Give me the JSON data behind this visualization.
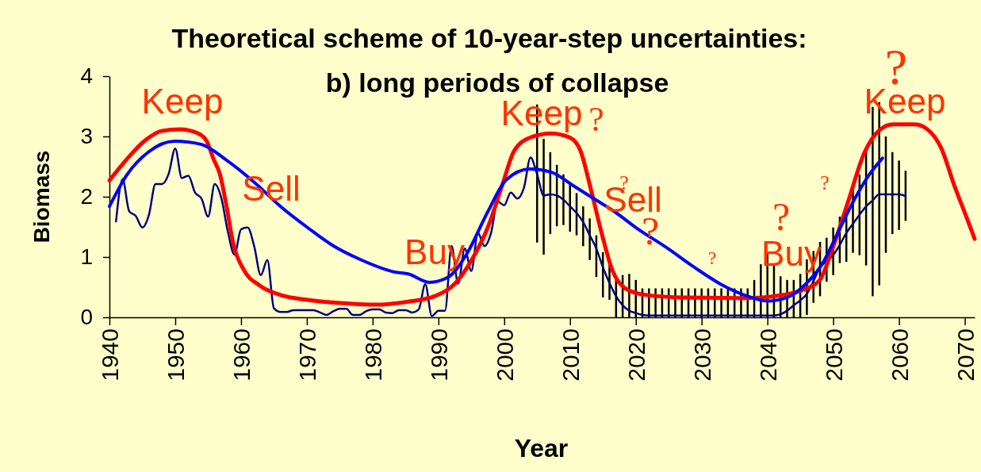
{
  "chart_data": {
    "type": "line",
    "title": "Theoretical scheme of 10-year-step uncertainties:\nb) long periods of collapse",
    "xlabel": "Year",
    "ylabel": "Biomass",
    "xlim": [
      1940,
      2071.5
    ],
    "xticks": [
      1940,
      1950,
      1960,
      1970,
      1980,
      1990,
      2000,
      2010,
      2020,
      2030,
      2040,
      2050,
      2060,
      2070
    ],
    "ylim": [
      0,
      4
    ],
    "yticks": [
      0,
      1,
      2,
      3,
      4
    ],
    "grid": false,
    "marker": "none",
    "line_style": "solid",
    "series": [
      {
        "color": "#000080",
        "x": [
          1941,
          1942,
          1943,
          1944,
          1945,
          1946,
          1947,
          1948,
          1949,
          1950,
          1951,
          1952,
          1953,
          1954,
          1955,
          1956,
          1957,
          1958,
          1959,
          1960,
          1961,
          1962,
          1963,
          1964,
          1965,
          1966,
          1967,
          1968,
          1969,
          1970,
          1971,
          1972,
          1973,
          1974,
          1975,
          1976,
          1977,
          1978,
          1979,
          1980,
          1981,
          1982,
          1983,
          1984,
          1985,
          1986,
          1987,
          1988,
          1989,
          1990,
          1991,
          1992,
          1993,
          1994,
          1995,
          1996,
          1997,
          1998,
          1999,
          2000,
          2001,
          2002,
          2003,
          2004,
          2005,
          2006,
          2007,
          2008,
          2009,
          2010,
          2011,
          2012,
          2013,
          2014,
          2015,
          2016,
          2017,
          2018,
          2019,
          2020,
          2021,
          2022,
          2023,
          2024,
          2025,
          2026,
          2027,
          2028,
          2029,
          2030,
          2031,
          2032,
          2033,
          2034,
          2035,
          2036,
          2037,
          2038,
          2039,
          2040,
          2041,
          2042,
          2043,
          2044,
          2045,
          2046,
          2047,
          2048,
          2049,
          2050,
          2051,
          2052,
          2053,
          2054,
          2055,
          2056,
          2057,
          2058,
          2059,
          2060,
          2061
        ],
        "values": [
          1.59,
          2.29,
          1.76,
          1.68,
          1.49,
          1.7,
          2.21,
          2.21,
          2.38,
          2.8,
          2.31,
          2.35,
          2.07,
          1.97,
          1.67,
          2.21,
          1.98,
          1.42,
          1.04,
          1.46,
          1.49,
          1.18,
          0.7,
          0.95,
          0.15,
          0.09,
          0.09,
          0.12,
          0.12,
          0.12,
          0.12,
          0.08,
          0.04,
          0.1,
          0.14,
          0.14,
          0.04,
          0.04,
          0.1,
          0.13,
          0.13,
          0.08,
          0.07,
          0.12,
          0.12,
          0.08,
          0.13,
          0.55,
          0.02,
          0.11,
          0.11,
          1.18,
          0.56,
          1.14,
          0.77,
          1.4,
          1.18,
          1.4,
          1.92,
          1.86,
          2.07,
          1.97,
          2.15,
          2.65,
          2.37,
          2.02,
          2.04,
          2.02,
          1.95,
          1.84,
          1.73,
          1.58,
          1.36,
          1.14,
          0.83,
          0.57,
          0.35,
          0.2,
          0.11,
          0.07,
          0.04,
          0.03,
          0.03,
          0.03,
          0.03,
          0.03,
          0.03,
          0.03,
          0.03,
          0.03,
          0.03,
          0.03,
          0.03,
          0.03,
          0.03,
          0.03,
          0.03,
          0.03,
          0.03,
          0.03,
          0.03,
          0.05,
          0.11,
          0.2,
          0.28,
          0.39,
          0.6,
          0.83,
          0.93,
          1.03,
          1.2,
          1.4,
          1.55,
          1.7,
          1.84,
          1.94,
          2.04,
          2.04,
          2.04,
          2.04,
          2.01
        ],
        "errors": [
          null,
          null,
          null,
          null,
          null,
          null,
          null,
          null,
          null,
          null,
          null,
          null,
          null,
          null,
          null,
          null,
          null,
          null,
          null,
          null,
          null,
          null,
          null,
          null,
          null,
          null,
          null,
          null,
          null,
          null,
          null,
          null,
          null,
          null,
          null,
          null,
          null,
          null,
          null,
          null,
          null,
          null,
          null,
          null,
          null,
          null,
          null,
          null,
          null,
          null,
          null,
          null,
          null,
          null,
          null,
          null,
          null,
          null,
          null,
          null,
          null,
          null,
          null,
          null,
          [
            1.24,
            3.53
          ],
          [
            1.04,
            2.96
          ],
          [
            1.38,
            2.74
          ],
          [
            1.51,
            2.53
          ],
          [
            1.53,
            2.37
          ],
          [
            1.42,
            2.21
          ],
          [
            1.36,
            2.06
          ],
          [
            1.18,
            1.84
          ],
          [
            0.95,
            1.64
          ],
          [
            0.67,
            1.36
          ],
          [
            0.33,
            1.08
          ],
          [
            0.29,
            0.88
          ],
          [
            0,
            0.68
          ],
          [
            0,
            0.7
          ],
          [
            0,
            0.72
          ],
          [
            0,
            0.62
          ],
          [
            0,
            0.48
          ],
          [
            0,
            0.48
          ],
          [
            0,
            0.48
          ],
          [
            0,
            0.48
          ],
          [
            0,
            0.48
          ],
          [
            0,
            0.48
          ],
          [
            0,
            0.48
          ],
          [
            0,
            0.48
          ],
          [
            0,
            0.48
          ],
          [
            0,
            0.48
          ],
          [
            0,
            0.48
          ],
          [
            0,
            0.48
          ],
          [
            0,
            0.48
          ],
          [
            0,
            0.48
          ],
          [
            0,
            0.48
          ],
          [
            0,
            0.48
          ],
          [
            0,
            0.48
          ],
          [
            0,
            0.62
          ],
          [
            0,
            0.88
          ],
          [
            0,
            1.05
          ],
          [
            0,
            0.86
          ],
          [
            0,
            0.68
          ],
          [
            0,
            0.62
          ],
          [
            0,
            0.62
          ],
          [
            0,
            0.72
          ],
          [
            0.04,
            0.96
          ],
          [
            0.24,
            1.1
          ],
          [
            0.35,
            1.25
          ],
          [
            0.59,
            1.32
          ],
          [
            0.7,
            1.49
          ],
          [
            0.9,
            1.67
          ],
          [
            0.92,
            1.89
          ],
          [
            1.07,
            2.15
          ],
          [
            1.03,
            2.37
          ],
          [
            0.86,
            2.81
          ],
          [
            0.35,
            3.49
          ],
          [
            0.53,
            3.57
          ],
          [
            1.07,
            3.0
          ],
          [
            1.38,
            2.74
          ],
          [
            1.45,
            2.6
          ],
          [
            1.6,
            2.43
          ]
        ]
      },
      {
        "color": "#ff0000",
        "x": [
          1940,
          1942.7,
          1945.5,
          1947.9,
          1950.7,
          1953.5,
          1954.8,
          1955.8,
          1956.8,
          1957.8,
          1958.8,
          1960.4,
          1962.8,
          1966,
          1970.1,
          1976.1,
          1980.5,
          1985.4,
          1989.4,
          1992.6,
          1995.1,
          1997.5,
          1999.7,
          2001.5,
          2003.9,
          2007.1,
          2010,
          2011.6,
          2013.2,
          2014.8,
          2016.4,
          2018.4,
          2021.6,
          2027.3,
          2037,
          2041,
          2045,
          2047.9,
          2049.9,
          2052.3,
          2054.7,
          2057.1,
          2059.1,
          2062.4,
          2064.4,
          2066.4,
          2068.4,
          2070.4,
          2071.5
        ],
        "values": [
          2.27,
          2.63,
          2.94,
          3.09,
          3.12,
          3.05,
          2.92,
          2.63,
          2.37,
          1.84,
          1.23,
          0.79,
          0.53,
          0.37,
          0.29,
          0.23,
          0.21,
          0.26,
          0.35,
          0.57,
          0.96,
          1.49,
          2.19,
          2.76,
          2.98,
          3.05,
          2.98,
          2.76,
          2.11,
          1.4,
          0.79,
          0.48,
          0.37,
          0.33,
          0.32,
          0.35,
          0.44,
          0.61,
          1.14,
          1.93,
          2.72,
          3.11,
          3.2,
          3.2,
          3.11,
          2.81,
          2.19,
          1.62,
          1.3
        ]
      },
      {
        "color": "#0000ff",
        "x": [
          1940,
          1942.7,
          1945.9,
          1949.9,
          1953.9,
          1958,
          1962,
          1966,
          1970.1,
          1974.1,
          1978.1,
          1983.4,
          1985.4,
          1988.6,
          1991.4,
          1994.3,
          1997.5,
          2000.3,
          2003.9,
          2007.1,
          2010.4,
          2013.6,
          2016.8,
          2020,
          2024.9,
          2028.9,
          2032.9,
          2037,
          2040,
          2043,
          2045.8,
          2048.3,
          2050.7,
          2053.1,
          2055.5,
          2057.5
        ],
        "values": [
          1.84,
          2.37,
          2.74,
          2.92,
          2.87,
          2.59,
          2.24,
          1.84,
          1.49,
          1.18,
          0.96,
          0.75,
          0.72,
          0.58,
          0.66,
          1.05,
          1.75,
          2.28,
          2.46,
          2.41,
          2.19,
          1.97,
          1.75,
          1.49,
          1.14,
          0.83,
          0.55,
          0.35,
          0.27,
          0.33,
          0.55,
          0.88,
          1.4,
          1.93,
          2.37,
          2.64
        ]
      }
    ],
    "annotations": [
      "Keep",
      "Sell",
      "Buy",
      "Keep",
      "Sell",
      "Buy",
      "Keep",
      "?",
      "?",
      "?",
      "?",
      "?",
      "?",
      "?"
    ]
  }
}
